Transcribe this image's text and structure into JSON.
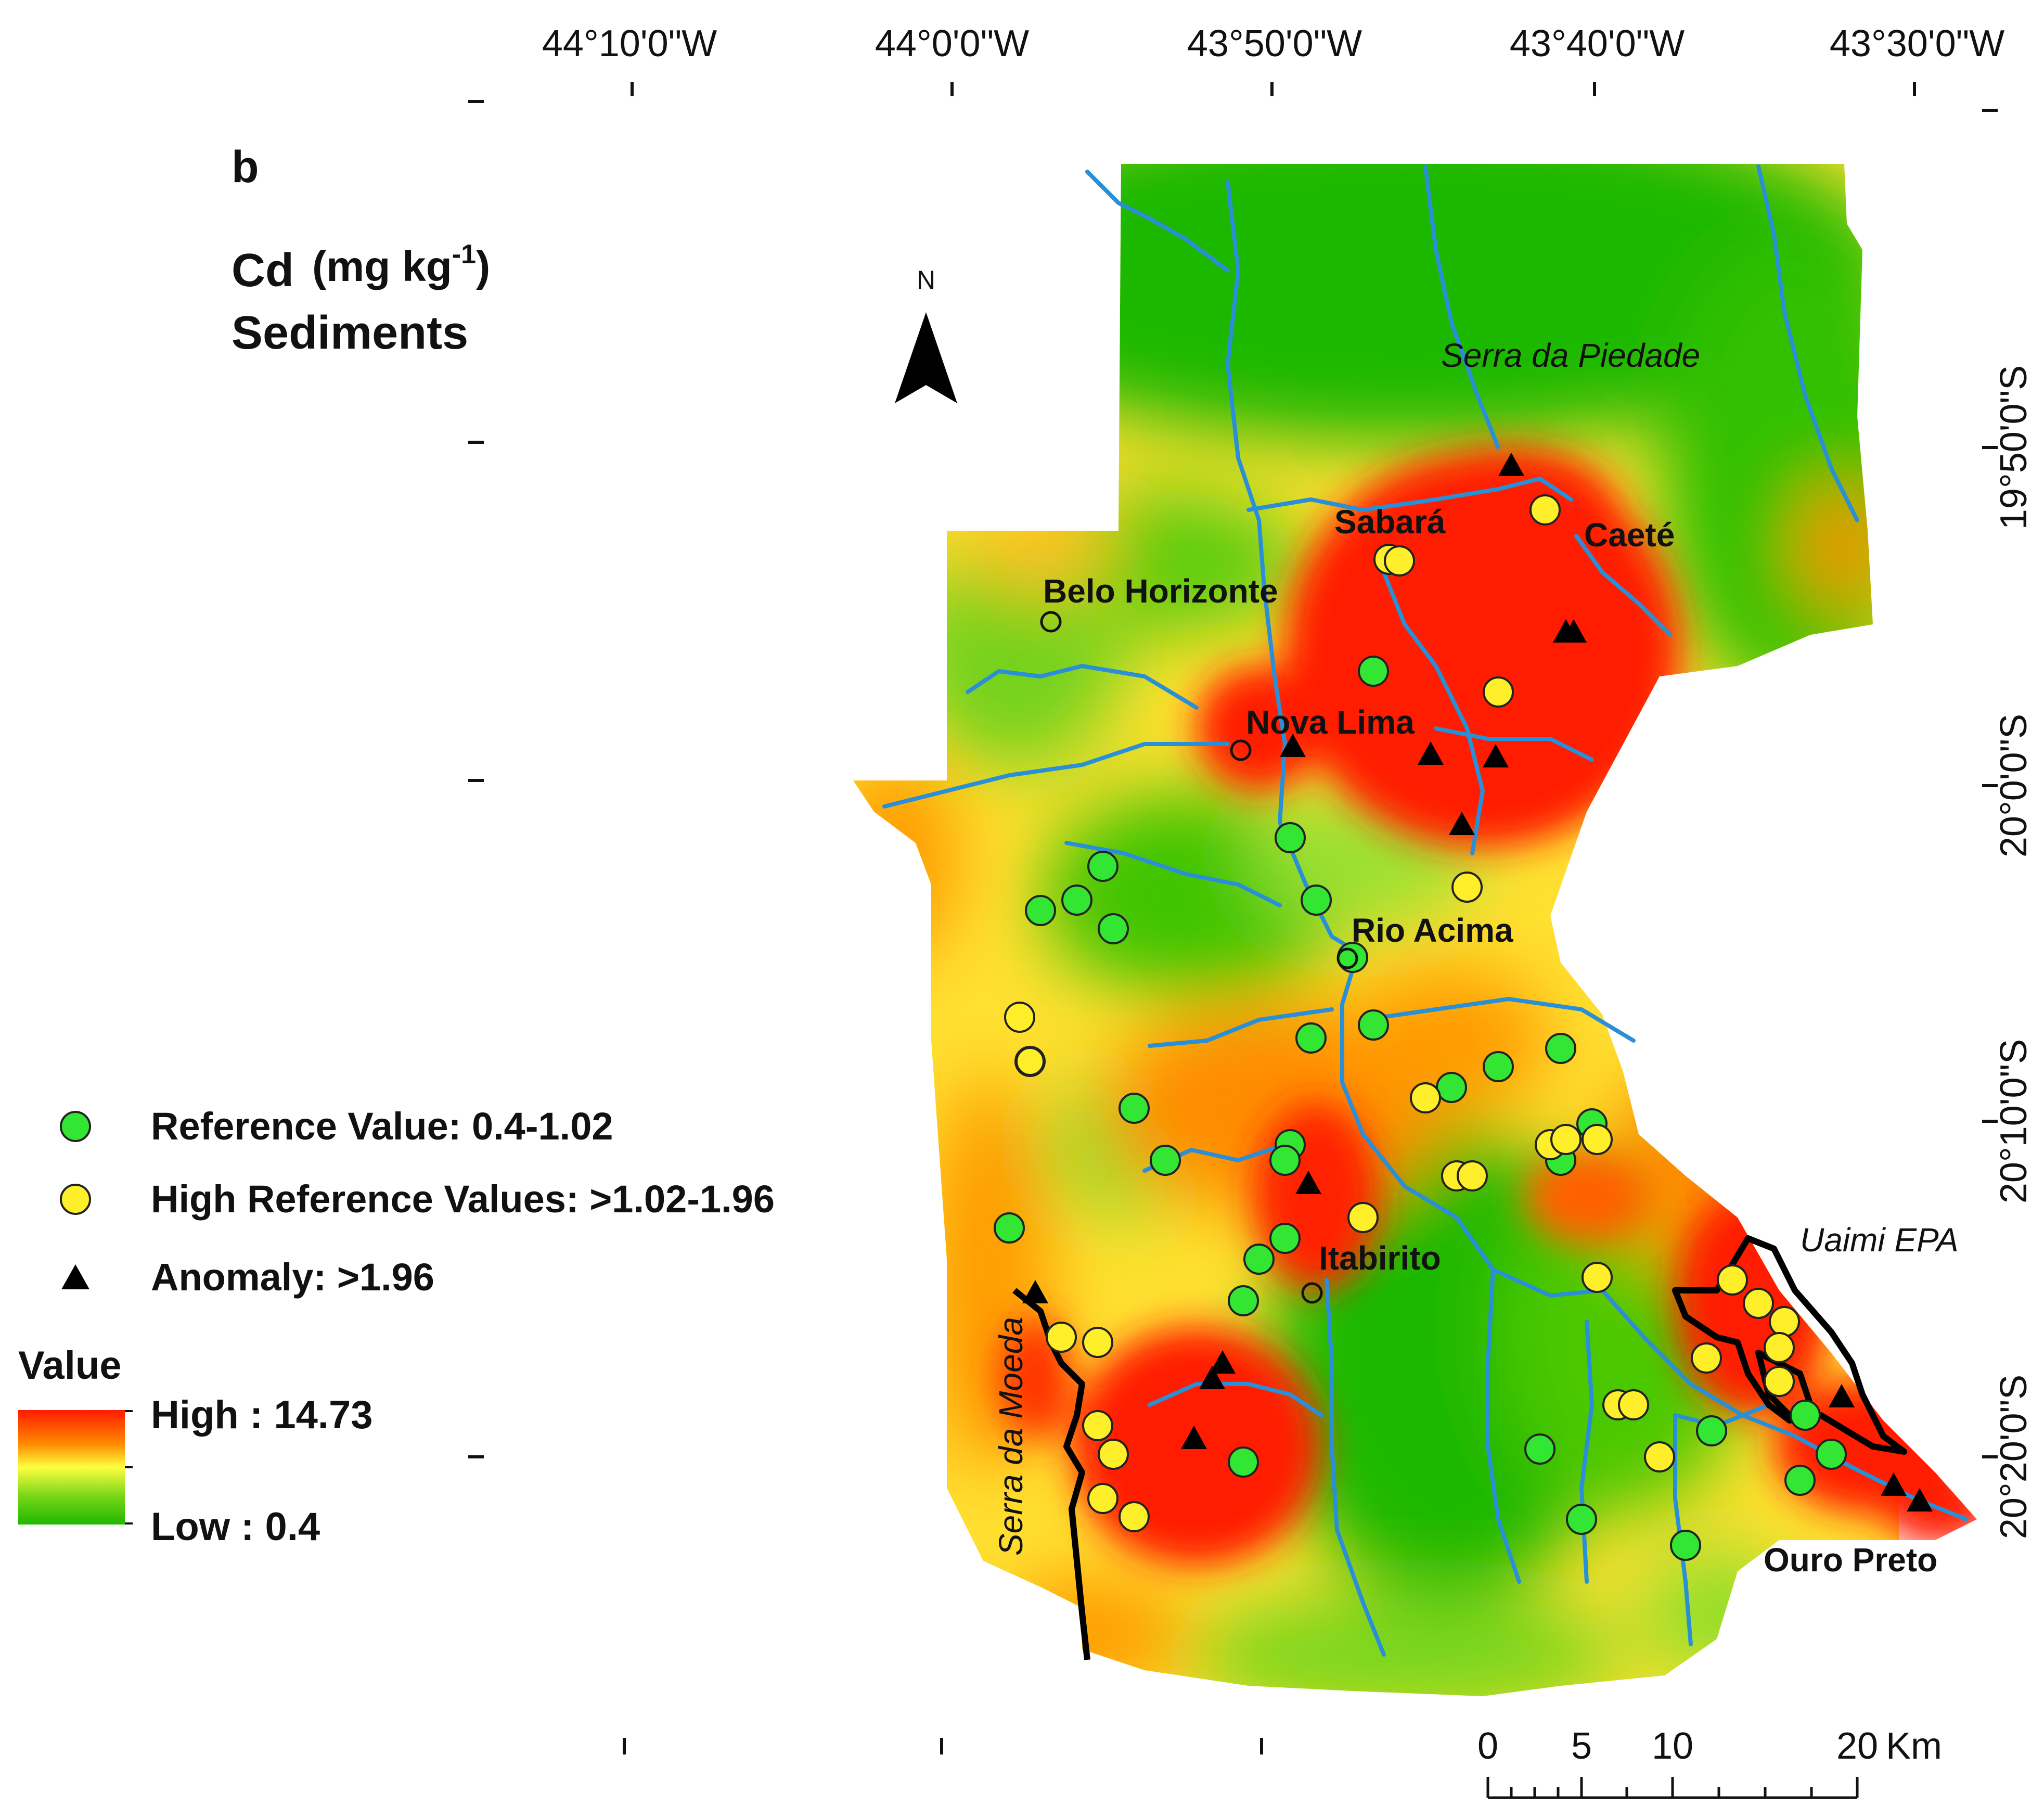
{
  "panel_label": "b",
  "title": {
    "line1": "Cd",
    "unit_prefix": "(mg kg",
    "unit_sup": "-1",
    "unit_suffix": ")",
    "line2": "Sediments"
  },
  "grid": {
    "top_labels": [
      "44°10'0\"W",
      "44°0'0\"W",
      "43°50'0\"W",
      "43°40'0\"W",
      "43°30'0\"W"
    ],
    "right_labels": [
      "19°50'0\"S",
      "20°0'0\"S",
      "20°10'0\"S",
      "20°20'0\"S"
    ]
  },
  "north_arrow": {
    "label": "N"
  },
  "places": {
    "belo_horizonte": "Belo Horizonte",
    "nova_lima": "Nova Lima",
    "sabara": "Sabará",
    "caete": "Caeté",
    "rio_acima": "Rio Acima",
    "itabirito": "Itabirito",
    "ouro_preto": "Ouro Preto"
  },
  "features": {
    "serra_piedade": "Serra da Piedade",
    "serra_moeda": "Serra da Moeda",
    "uaimi": "Uaimi EPA"
  },
  "legend": {
    "reference": "Reference Value: 0.4-1.02",
    "high_reference": "High Reference Values: >1.02-1.96",
    "anomaly": "Anomaly: >1.96",
    "value_title": "Value",
    "high": "High : 14.73",
    "low": "Low : 0.4"
  },
  "scale_bar": {
    "ticks": [
      "0",
      "5",
      "10",
      "20"
    ],
    "unit": "Km"
  },
  "colors": {
    "high": "#ff1a00",
    "mid_high": "#ff8c00",
    "mid": "#ffff40",
    "low": "#1fb800",
    "reference_point": "#33e633",
    "high_reference_point": "#ffef2a",
    "anomaly_point": "#000000",
    "river": "#2a8fd6"
  }
}
